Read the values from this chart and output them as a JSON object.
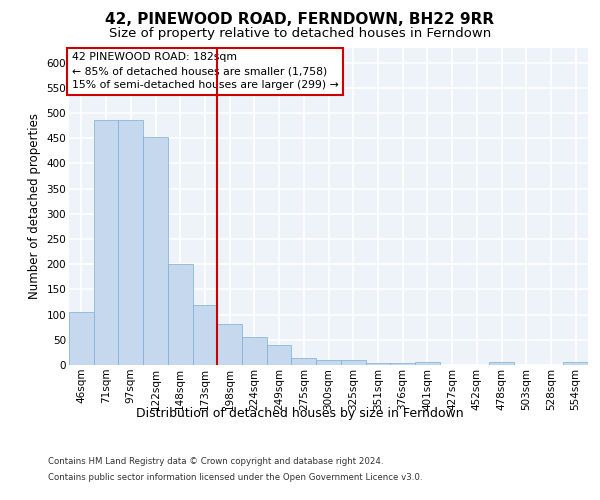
{
  "title": "42, PINEWOOD ROAD, FERNDOWN, BH22 9RR",
  "subtitle": "Size of property relative to detached houses in Ferndown",
  "xlabel": "Distribution of detached houses by size in Ferndown",
  "ylabel": "Number of detached properties",
  "categories": [
    "46sqm",
    "71sqm",
    "97sqm",
    "122sqm",
    "148sqm",
    "173sqm",
    "198sqm",
    "224sqm",
    "249sqm",
    "275sqm",
    "300sqm",
    "325sqm",
    "351sqm",
    "376sqm",
    "401sqm",
    "427sqm",
    "452sqm",
    "478sqm",
    "503sqm",
    "528sqm",
    "554sqm"
  ],
  "values": [
    105,
    487,
    487,
    452,
    200,
    120,
    82,
    55,
    40,
    14,
    9,
    10,
    3,
    3,
    5,
    0,
    0,
    6,
    0,
    0,
    6
  ],
  "bar_color": "#c5d8ed",
  "bar_edge_color": "#7aafd4",
  "property_line_x": 5.5,
  "annotation_title": "42 PINEWOOD ROAD: 182sqm",
  "annotation_line1": "← 85% of detached houses are smaller (1,758)",
  "annotation_line2": "15% of semi-detached houses are larger (299) →",
  "annotation_box_color": "#ffffff",
  "annotation_box_edge": "#cc0000",
  "property_line_color": "#cc0000",
  "footer1": "Contains HM Land Registry data © Crown copyright and database right 2024.",
  "footer2": "Contains public sector information licensed under the Open Government Licence v3.0.",
  "ylim": [
    0,
    630
  ],
  "yticks": [
    0,
    50,
    100,
    150,
    200,
    250,
    300,
    350,
    400,
    450,
    500,
    550,
    600
  ],
  "background_color": "#eef2f9",
  "grid_color": "#ffffff",
  "title_fontsize": 11,
  "subtitle_fontsize": 9.5,
  "tick_fontsize": 7.5,
  "ylabel_fontsize": 8.5,
  "xlabel_fontsize": 9,
  "footer_fontsize": 6.2
}
